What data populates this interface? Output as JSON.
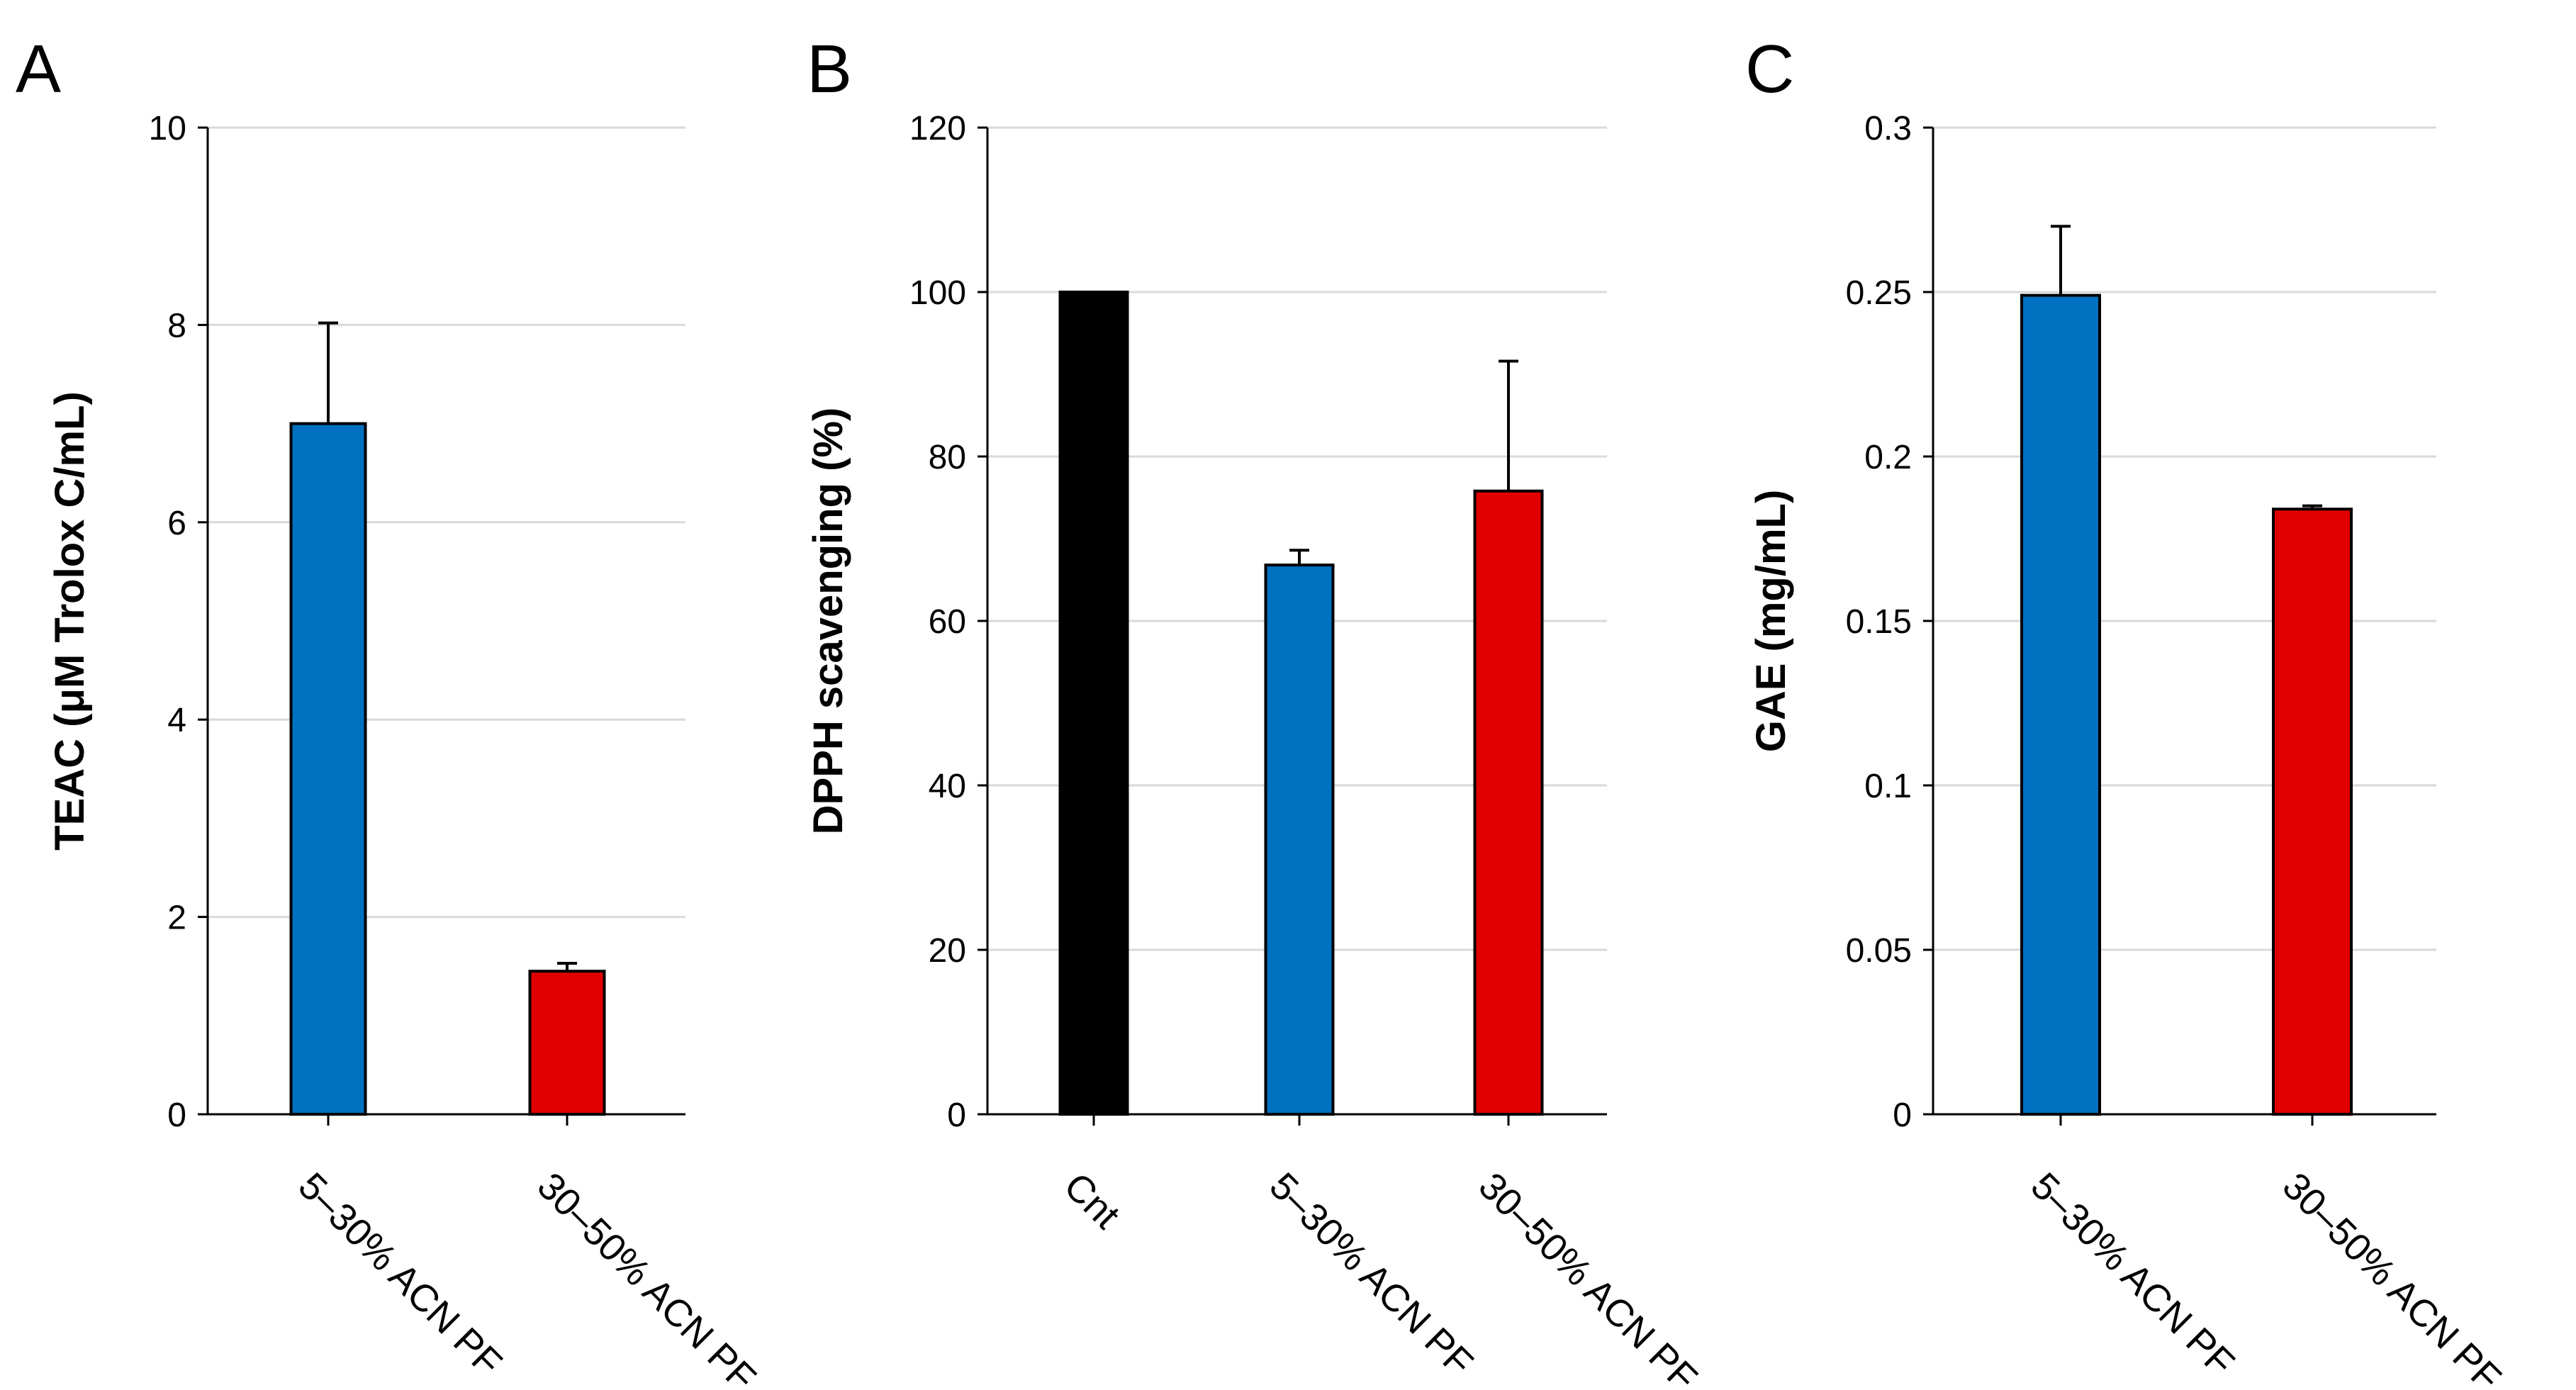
{
  "chart_data": [
    {
      "type": "bar",
      "panel_label": "A",
      "categories": [
        "5–30% ACN PF",
        "30–50% ACN PF"
      ],
      "values": [
        7.0,
        1.45
      ],
      "errors": [
        1.02,
        0.08
      ],
      "colors": [
        "#0070c0",
        "#e00000"
      ],
      "title": "",
      "xlabel": "",
      "ylabel": "TEAC (μM Trolox C/mL)",
      "ylim": [
        0,
        10
      ],
      "yticks": [
        0,
        2,
        4,
        6,
        8,
        10
      ],
      "ytick_labels": [
        "0",
        "2",
        "4",
        "6",
        "8",
        "10"
      ],
      "grid": true
    },
    {
      "type": "bar",
      "panel_label": "B",
      "categories": [
        "Cnt",
        "5–30% ACN PF",
        "30–50% ACN PF"
      ],
      "values": [
        100,
        66.8,
        75.8
      ],
      "errors": [
        0,
        1.8,
        15.8
      ],
      "colors": [
        "#000000",
        "#0070c0",
        "#e00000"
      ],
      "title": "",
      "xlabel": "",
      "ylabel": "DPPH scavenging (%)",
      "ylim": [
        0,
        120
      ],
      "yticks": [
        0,
        20,
        40,
        60,
        80,
        100,
        120
      ],
      "ytick_labels": [
        "0",
        "20",
        "40",
        "60",
        "80",
        "100",
        "120"
      ],
      "grid": true
    },
    {
      "type": "bar",
      "panel_label": "C",
      "categories": [
        "5–30% ACN PF",
        "30–50% ACN PF"
      ],
      "values": [
        0.249,
        0.184
      ],
      "errors": [
        0.021,
        0.001
      ],
      "colors": [
        "#0070c0",
        "#e00000"
      ],
      "title": "",
      "xlabel": "",
      "ylabel": "GAE (mg/mL)",
      "ylim": [
        0,
        0.3
      ],
      "yticks": [
        0,
        0.05,
        0.1,
        0.15,
        0.2,
        0.25,
        0.3
      ],
      "ytick_labels": [
        "0",
        "0.05",
        "0.1",
        "0.15",
        "0.2",
        "0.25",
        "0.3"
      ],
      "grid": true
    }
  ]
}
